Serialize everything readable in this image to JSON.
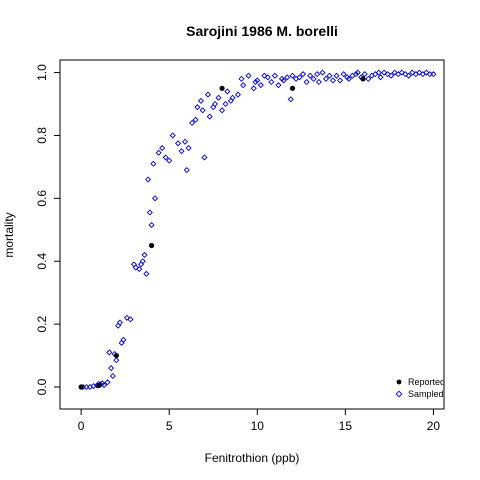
{
  "chart_data": {
    "type": "scatter",
    "title": "Sarojini 1986 M. borelli",
    "xlabel": "Fenitrothion (ppb)",
    "ylabel": "mortality",
    "xlim": [
      -1.2,
      20.6
    ],
    "ylim": [
      -0.07,
      1.04
    ],
    "x_ticks": [
      0,
      5,
      10,
      15,
      20
    ],
    "x_tick_labels": [
      "0",
      "5",
      "10",
      "15",
      "20"
    ],
    "y_ticks": [
      0.0,
      0.2,
      0.4,
      0.6,
      0.8,
      1.0
    ],
    "y_tick_labels": [
      "0.0",
      "0.2",
      "0.4",
      "0.6",
      "0.8",
      "1.0"
    ],
    "grid": false,
    "legend_position": "bottom-right",
    "series": [
      {
        "name": "Reported",
        "marker": "filled-circle",
        "color": "#000000",
        "x": [
          0,
          1,
          2,
          4,
          8,
          12,
          16
        ],
        "y": [
          0.0,
          0.005,
          0.1,
          0.45,
          0.95,
          0.95,
          0.98
        ]
      },
      {
        "name": "Sampled",
        "marker": "open-diamond",
        "color": "#0000cc",
        "x": [
          0.1,
          0.3,
          0.5,
          0.7,
          0.9,
          1.0,
          1.1,
          1.2,
          1.3,
          1.5,
          1.6,
          1.7,
          1.8,
          1.9,
          2.0,
          2.1,
          2.2,
          2.3,
          2.4,
          2.6,
          2.8,
          3.0,
          3.1,
          3.3,
          3.4,
          3.5,
          3.6,
          3.7,
          3.8,
          3.9,
          4.0,
          4.1,
          4.2,
          4.4,
          4.6,
          4.8,
          5.0,
          5.2,
          5.5,
          5.7,
          5.9,
          6.0,
          6.1,
          6.3,
          6.5,
          6.6,
          6.8,
          6.9,
          7.0,
          7.2,
          7.3,
          7.5,
          7.6,
          7.8,
          8.0,
          8.2,
          8.3,
          8.5,
          8.6,
          8.9,
          9.1,
          9.2,
          9.5,
          9.8,
          9.9,
          10.0,
          10.2,
          10.4,
          10.6,
          10.8,
          11.0,
          11.2,
          11.4,
          11.5,
          11.7,
          11.9,
          12.0,
          12.2,
          12.4,
          12.6,
          12.8,
          13.0,
          13.2,
          13.4,
          13.5,
          13.7,
          13.9,
          14.1,
          14.3,
          14.5,
          14.7,
          14.9,
          15.1,
          15.2,
          15.4,
          15.6,
          15.7,
          15.9,
          16.1,
          16.3,
          16.5,
          16.7,
          16.9,
          17.0,
          17.2,
          17.4,
          17.6,
          17.8,
          18.0,
          18.2,
          18.4,
          18.6,
          18.8,
          19.0,
          19.2,
          19.4,
          19.6,
          19.8,
          20.0
        ],
        "y": [
          0.0,
          0.0,
          0.0,
          0.003,
          0.005,
          0.01,
          0.008,
          0.012,
          0.006,
          0.015,
          0.11,
          0.06,
          0.035,
          0.105,
          0.085,
          0.195,
          0.205,
          0.14,
          0.15,
          0.22,
          0.215,
          0.39,
          0.38,
          0.375,
          0.39,
          0.4,
          0.42,
          0.36,
          0.66,
          0.555,
          0.515,
          0.71,
          0.6,
          0.745,
          0.76,
          0.73,
          0.72,
          0.8,
          0.775,
          0.75,
          0.78,
          0.69,
          0.76,
          0.84,
          0.85,
          0.89,
          0.91,
          0.88,
          0.73,
          0.93,
          0.86,
          0.89,
          0.9,
          0.92,
          0.88,
          0.9,
          0.94,
          0.91,
          0.92,
          0.93,
          0.98,
          0.96,
          0.99,
          0.95,
          0.97,
          0.975,
          0.96,
          0.99,
          0.985,
          0.97,
          0.99,
          0.96,
          0.98,
          0.975,
          0.985,
          0.915,
          0.99,
          0.98,
          0.985,
          0.995,
          0.97,
          0.99,
          0.98,
          0.995,
          0.97,
          1.0,
          0.98,
          0.99,
          0.975,
          0.99,
          0.975,
          0.995,
          0.985,
          0.98,
          0.99,
          0.995,
          1.0,
          0.985,
          0.995,
          0.98,
          0.99,
          0.995,
          1.0,
          0.985,
          1.0,
          0.995,
          0.99,
          1.0,
          0.995,
          1.0,
          0.995,
          0.99,
          1.0,
          0.995,
          1.0,
          0.995,
          1.0,
          0.995,
          0.995
        ]
      }
    ]
  }
}
